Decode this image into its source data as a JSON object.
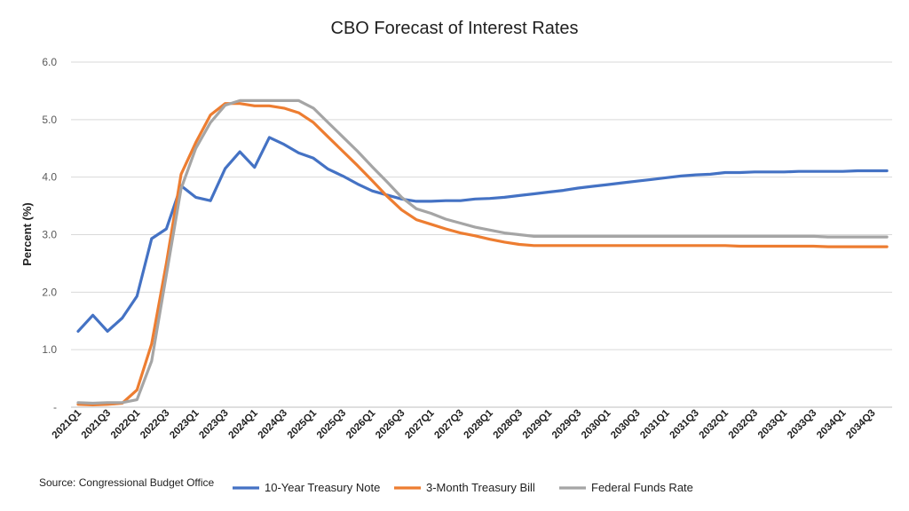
{
  "chart_data": {
    "type": "line",
    "title": "CBO Forecast of Interest Rates",
    "xlabel": "",
    "ylabel": "Percent (%)",
    "ylim": [
      0,
      6
    ],
    "y_ticks": [
      {
        "value": 0,
        "label": "-"
      },
      {
        "value": 1,
        "label": "1.0"
      },
      {
        "value": 2,
        "label": "2.0"
      },
      {
        "value": 3,
        "label": "3.0"
      },
      {
        "value": 4,
        "label": "4.0"
      },
      {
        "value": 5,
        "label": "5.0"
      },
      {
        "value": 6,
        "label": "6.0"
      }
    ],
    "grid": true,
    "legend_position": "bottom",
    "x": [
      "2021Q1",
      "2021Q2",
      "2021Q3",
      "2021Q4",
      "2022Q1",
      "2022Q2",
      "2022Q3",
      "2022Q4",
      "2023Q1",
      "2023Q2",
      "2023Q3",
      "2023Q4",
      "2024Q1",
      "2024Q2",
      "2024Q3",
      "2024Q4",
      "2025Q1",
      "2025Q2",
      "2025Q3",
      "2025Q4",
      "2026Q1",
      "2026Q2",
      "2026Q3",
      "2026Q4",
      "2027Q1",
      "2027Q2",
      "2027Q3",
      "2027Q4",
      "2028Q1",
      "2028Q2",
      "2028Q3",
      "2028Q4",
      "2029Q1",
      "2029Q2",
      "2029Q3",
      "2029Q4",
      "2030Q1",
      "2030Q2",
      "2030Q3",
      "2030Q4",
      "2031Q1",
      "2031Q2",
      "2031Q3",
      "2031Q4",
      "2032Q1",
      "2032Q2",
      "2032Q3",
      "2032Q4",
      "2033Q1",
      "2033Q2",
      "2033Q3",
      "2033Q4",
      "2034Q1",
      "2034Q2",
      "2034Q3",
      "2034Q4"
    ],
    "x_tick_labels": [
      "2021Q1",
      "2021Q3",
      "2022Q1",
      "2022Q3",
      "2023Q1",
      "2023Q3",
      "2024Q1",
      "2024Q3",
      "2025Q1",
      "2025Q3",
      "2026Q1",
      "2026Q3",
      "2027Q1",
      "2027Q3",
      "2028Q1",
      "2028Q3",
      "2029Q1",
      "2029Q3",
      "2030Q1",
      "2030Q3",
      "2031Q1",
      "2031Q3",
      "2032Q1",
      "2032Q3",
      "2033Q1",
      "2033Q3",
      "2034Q1",
      "2034Q3"
    ],
    "series": [
      {
        "name": "10-Year Treasury Note",
        "color": "#4472c4",
        "values": [
          1.32,
          1.6,
          1.32,
          1.55,
          1.93,
          2.93,
          3.1,
          3.85,
          3.65,
          3.59,
          4.15,
          4.44,
          4.17,
          4.69,
          4.57,
          4.42,
          4.33,
          4.14,
          4.02,
          3.88,
          3.76,
          3.69,
          3.62,
          3.58,
          3.58,
          3.59,
          3.59,
          3.62,
          3.63,
          3.65,
          3.68,
          3.71,
          3.74,
          3.77,
          3.81,
          3.84,
          3.87,
          3.9,
          3.93,
          3.96,
          3.99,
          4.02,
          4.04,
          4.05,
          4.08,
          4.08,
          4.09,
          4.09,
          4.09,
          4.1,
          4.1,
          4.1,
          4.1,
          4.11,
          4.11,
          4.11
        ]
      },
      {
        "name": "3-Month Treasury Bill",
        "color": "#ed7d31",
        "values": [
          0.05,
          0.04,
          0.05,
          0.07,
          0.3,
          1.1,
          2.5,
          4.05,
          4.6,
          5.08,
          5.28,
          5.28,
          5.24,
          5.24,
          5.2,
          5.12,
          4.95,
          4.7,
          4.45,
          4.2,
          3.94,
          3.67,
          3.43,
          3.26,
          3.18,
          3.1,
          3.03,
          2.98,
          2.92,
          2.87,
          2.83,
          2.81,
          2.81,
          2.81,
          2.81,
          2.81,
          2.81,
          2.81,
          2.81,
          2.81,
          2.81,
          2.81,
          2.81,
          2.81,
          2.81,
          2.8,
          2.8,
          2.8,
          2.8,
          2.8,
          2.8,
          2.79,
          2.79,
          2.79,
          2.79,
          2.79
        ]
      },
      {
        "name": "Federal Funds Rate",
        "color": "#a5a5a5",
        "values": [
          0.08,
          0.07,
          0.08,
          0.08,
          0.13,
          0.8,
          2.3,
          3.8,
          4.5,
          4.95,
          5.25,
          5.33,
          5.33,
          5.33,
          5.33,
          5.33,
          5.2,
          4.95,
          4.7,
          4.45,
          4.18,
          3.92,
          3.65,
          3.45,
          3.37,
          3.27,
          3.2,
          3.13,
          3.08,
          3.03,
          3.0,
          2.97,
          2.97,
          2.97,
          2.97,
          2.97,
          2.97,
          2.97,
          2.97,
          2.97,
          2.97,
          2.97,
          2.97,
          2.97,
          2.97,
          2.97,
          2.97,
          2.97,
          2.97,
          2.97,
          2.97,
          2.96,
          2.96,
          2.96,
          2.96,
          2.96
        ]
      }
    ],
    "source": "Source: Congressional Budget Office"
  }
}
